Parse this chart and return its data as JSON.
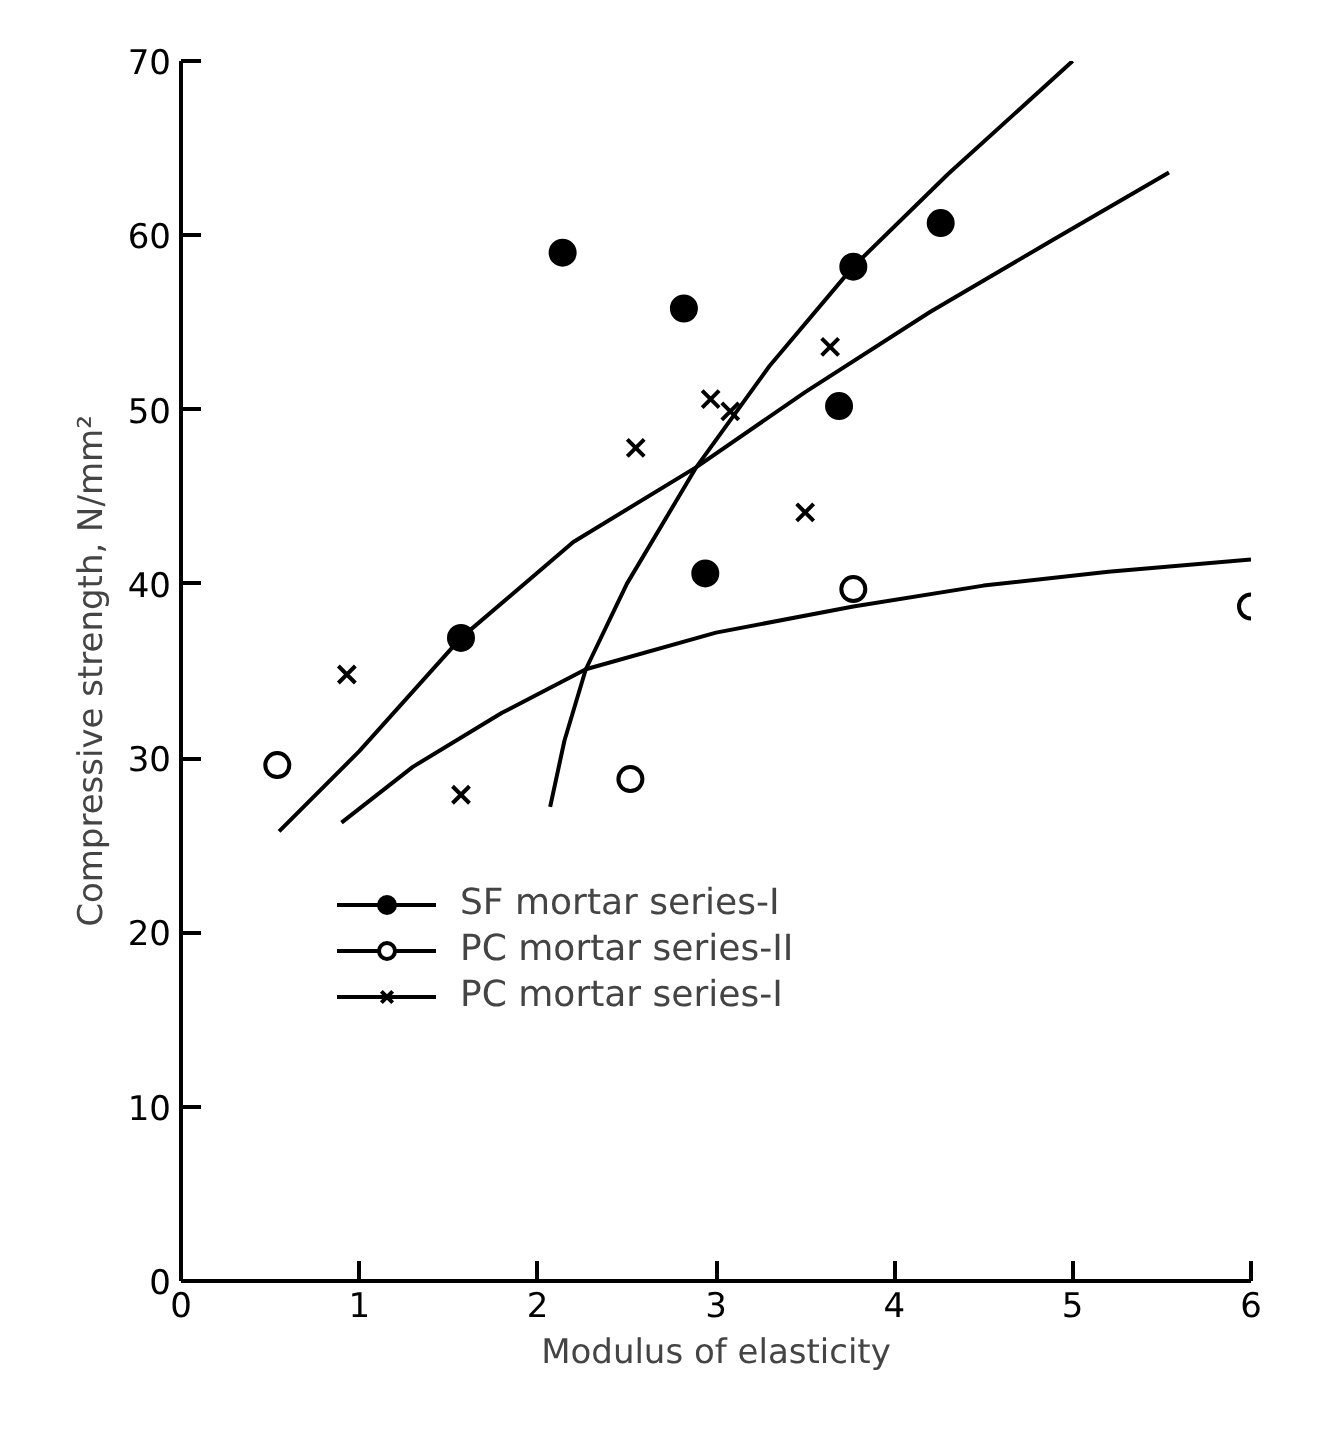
{
  "chart_data": {
    "type": "scatter",
    "xlabel": "Modulus of elasticity",
    "ylabel": "Compressive strength, N/mm²",
    "xlim": [
      0,
      6
    ],
    "ylim": [
      0,
      70
    ],
    "xticks": [
      0,
      1,
      2,
      3,
      4,
      5,
      6
    ],
    "yticks": [
      0,
      10,
      20,
      30,
      40,
      50,
      60,
      70
    ],
    "grid": false,
    "legend": "bottom left",
    "series": [
      {
        "name": "SF mortar series-I",
        "color": "#000000",
        "marker": "circle",
        "x": [
          2.14,
          2.82,
          3.77,
          4.26,
          3.69,
          2.94,
          1.57
        ],
        "values": [
          59.0,
          55.8,
          58.2,
          60.7,
          50.2,
          40.6,
          36.9
        ]
      },
      {
        "name": "PC mortar series-II",
        "color": "#000000",
        "marker": "circle_open",
        "x": [
          0.54,
          2.52,
          3.77,
          6.0
        ],
        "values": [
          29.6,
          28.8,
          39.7,
          38.7
        ]
      },
      {
        "name": "PC mortar series-I",
        "color": "#000000",
        "marker": "cross",
        "x": [
          0.93,
          1.57,
          2.55,
          2.97,
          3.08,
          3.64,
          3.5
        ],
        "values": [
          34.8,
          27.9,
          47.8,
          50.6,
          49.9,
          53.6,
          44.1
        ]
      },
      {
        "type": "line",
        "color": "#000000",
        "x": [
          2.07,
          2.15,
          2.27,
          2.5,
          2.89,
          3.3,
          3.77,
          4.3,
          5.0
        ],
        "values": [
          27.2,
          31.0,
          35.1,
          40.0,
          46.7,
          52.5,
          58.2,
          63.5,
          70.0
        ]
      },
      {
        "type": "line",
        "color": "#000000",
        "x": [
          0.9,
          1.3,
          1.8,
          2.27,
          3.0,
          3.77,
          4.5,
          5.2,
          6.0
        ],
        "values": [
          26.3,
          29.5,
          32.6,
          35.1,
          37.2,
          38.7,
          39.9,
          40.7,
          41.4
        ]
      },
      {
        "type": "line",
        "color": "#000000",
        "x": [
          0.55,
          1.0,
          1.57,
          2.2,
          2.89,
          3.5,
          4.2,
          4.9,
          5.54
        ],
        "values": [
          25.8,
          30.4,
          36.9,
          42.4,
          46.7,
          51.0,
          55.6,
          59.8,
          63.6
        ]
      }
    ]
  }
}
